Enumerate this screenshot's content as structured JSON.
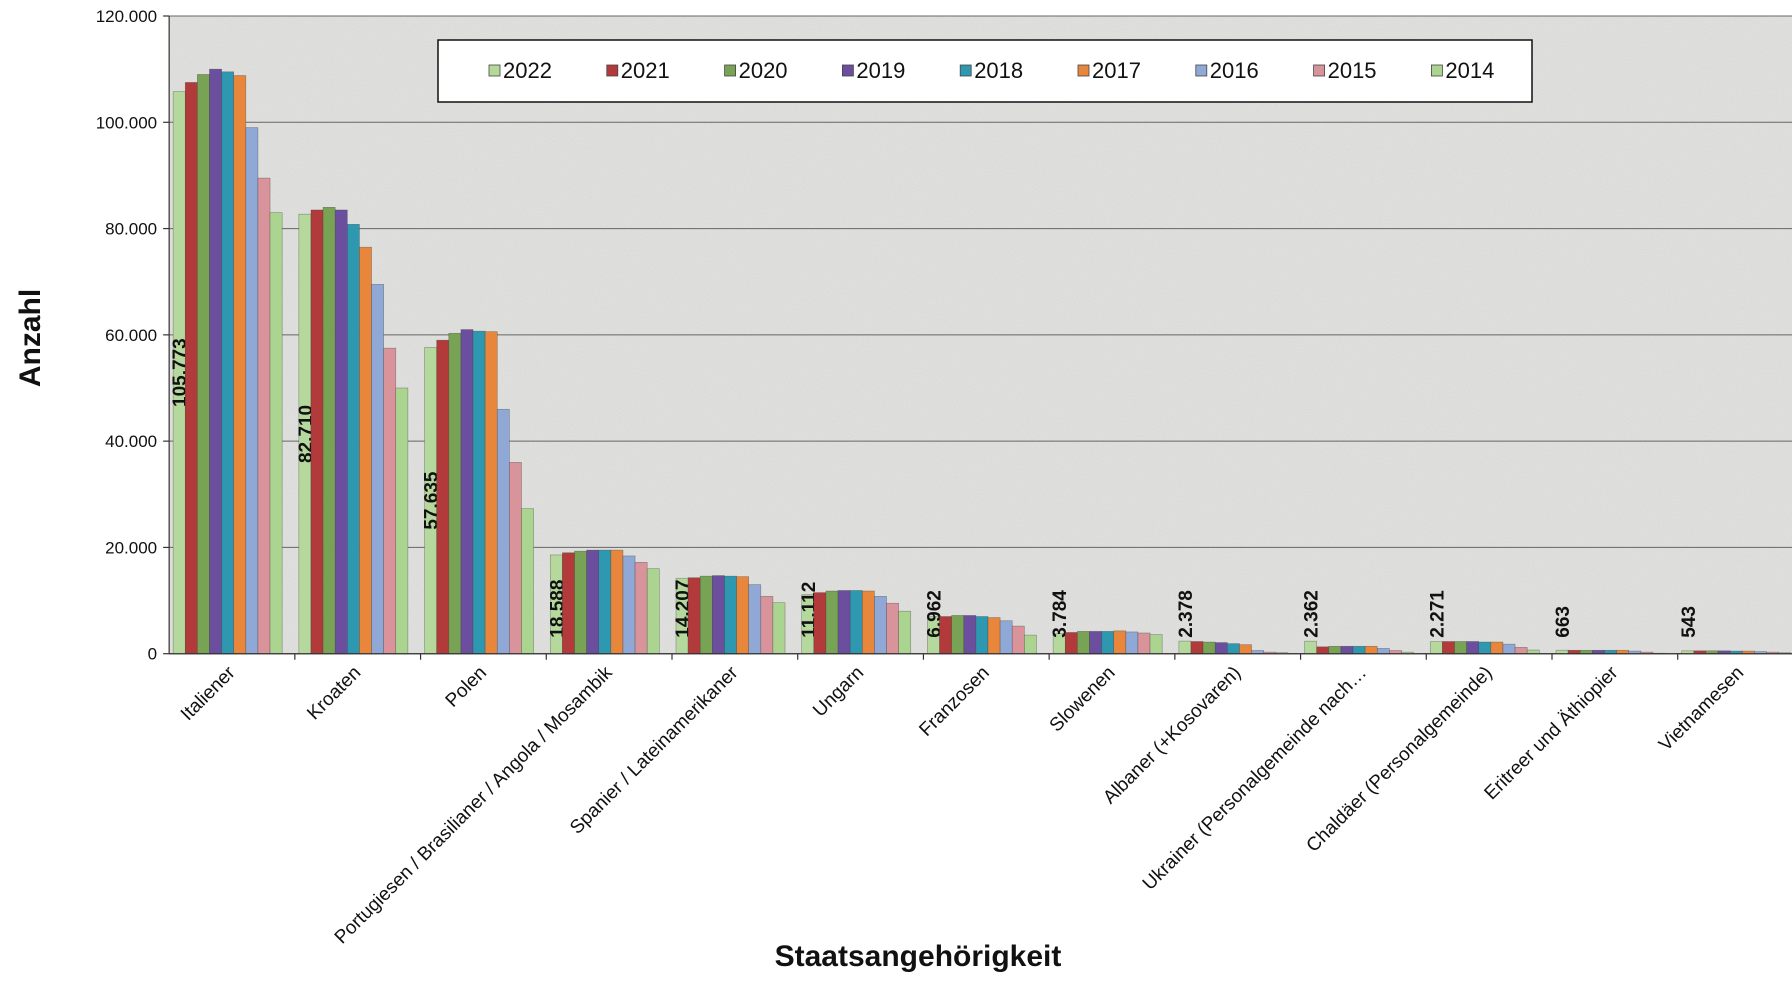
{
  "chart_data": {
    "type": "bar",
    "x_label": "Staatsangehörigkeit",
    "y_label": "Anzahl",
    "categories": [
      "Italiener",
      "Kroaten",
      "Polen",
      "Portugiesen / Brasilianer / Angola / Mosambik",
      "Spanier / Lateinamerikaner",
      "Ungarn",
      "Franzosen",
      "Slowenen",
      "Albaner (+Kosovaren)",
      "Ukrainer (Personalgemeinde nach…",
      "Chaldäer (Personalgemeinde)",
      "Eritreer und Äthiopier",
      "Vietnamesen"
    ],
    "series": [
      {
        "name": "2022",
        "color": "#b5d99c",
        "values": [
          105773,
          82710,
          57635,
          18588,
          14207,
          11112,
          6962,
          3784,
          2378,
          2362,
          2271,
          663,
          543
        ],
        "value_labels": [
          "105.773",
          "82.710",
          "57.635",
          "18.588",
          "14.207",
          "11.112",
          "6.962",
          "3.784",
          "2.378",
          "2.362",
          "2.271",
          "663",
          "543"
        ]
      },
      {
        "name": "2021",
        "color": "#b33a3a",
        "values": [
          107500,
          83500,
          59000,
          19000,
          14300,
          11500,
          7000,
          4000,
          2300,
          1300,
          2300,
          650,
          550
        ]
      },
      {
        "name": "2020",
        "color": "#78a355",
        "values": [
          109000,
          84000,
          60300,
          19300,
          14600,
          11800,
          7200,
          4200,
          2200,
          1400,
          2300,
          650,
          550
        ]
      },
      {
        "name": "2019",
        "color": "#6b4f9e",
        "values": [
          110000,
          83500,
          61000,
          19500,
          14700,
          11900,
          7200,
          4200,
          2100,
          1400,
          2300,
          650,
          550
        ]
      },
      {
        "name": "2018",
        "color": "#2f98b1",
        "values": [
          109500,
          80800,
          60700,
          19500,
          14600,
          11900,
          7000,
          4200,
          1900,
          1400,
          2200,
          650,
          500
        ]
      },
      {
        "name": "2017",
        "color": "#e8873c",
        "values": [
          108800,
          76500,
          60600,
          19500,
          14500,
          11800,
          6800,
          4300,
          1700,
          1400,
          2200,
          650,
          500
        ]
      },
      {
        "name": "2016",
        "color": "#8fa8d6",
        "values": [
          99000,
          69500,
          46000,
          18400,
          13000,
          10800,
          6200,
          4100,
          600,
          1000,
          1800,
          500,
          400
        ]
      },
      {
        "name": "2015",
        "color": "#d9939b",
        "values": [
          89500,
          57500,
          36000,
          17200,
          10800,
          9500,
          5200,
          3900,
          300,
          600,
          1200,
          300,
          300
        ]
      },
      {
        "name": "2014",
        "color": "#acd491",
        "values": [
          83000,
          50000,
          27300,
          16000,
          9600,
          8000,
          3500,
          3600,
          200,
          300,
          700,
          100,
          200
        ]
      }
    ],
    "ylim": [
      0,
      120000
    ],
    "yticks": [
      0,
      {
        "value": 20000,
        "label": "20.000"
      },
      {
        "value": 40000,
        "label": "40.000"
      },
      {
        "value": 60000,
        "label": "60.000"
      },
      {
        "value": 80000,
        "label": "80.000"
      },
      {
        "value": 100000,
        "label": "100.000"
      },
      {
        "value": 120000,
        "label": "120.000"
      }
    ],
    "grid": true,
    "legend": "top"
  }
}
